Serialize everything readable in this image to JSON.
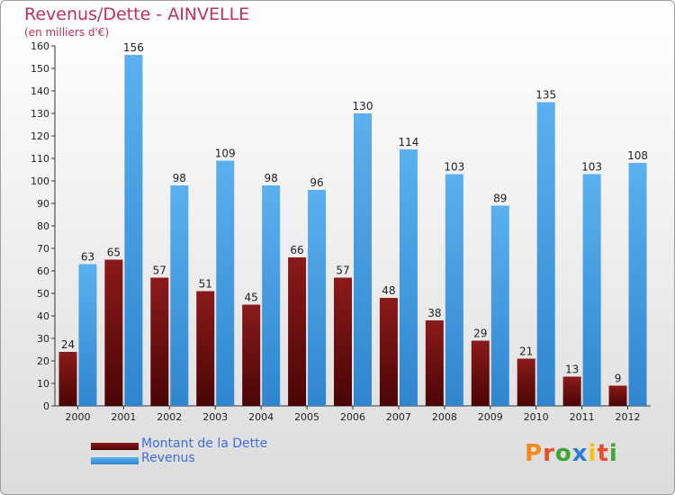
{
  "chart_data": {
    "type": "bar",
    "title": "Revenus/Dette - AINVELLE",
    "subtitle": "(en milliers d'€)",
    "categories": [
      "2000",
      "2001",
      "2002",
      "2003",
      "2004",
      "2005",
      "2006",
      "2007",
      "2008",
      "2009",
      "2010",
      "2011",
      "2012"
    ],
    "series": [
      {
        "name": "Montant de la Dette",
        "color": "#6b0f0f",
        "values": [
          24,
          65,
          57,
          51,
          45,
          66,
          57,
          48,
          38,
          29,
          21,
          13,
          9
        ]
      },
      {
        "name": "Revenus",
        "color": "#4aa3e6",
        "values": [
          63,
          156,
          98,
          109,
          98,
          96,
          130,
          114,
          103,
          89,
          135,
          103,
          108
        ]
      }
    ],
    "ylim": [
      0,
      160
    ],
    "yticks": [
      0,
      10,
      20,
      30,
      40,
      50,
      60,
      70,
      80,
      90,
      100,
      110,
      120,
      130,
      140,
      150,
      160
    ],
    "grid": false,
    "legend": "bottom-left"
  },
  "logo": {
    "text": "Proxiti",
    "colors": [
      "#f08a1c",
      "#e84e2a",
      "#3fa535",
      "#2a7fd4",
      "#f4c20d",
      "#e84e2a",
      "#3fa535"
    ]
  }
}
